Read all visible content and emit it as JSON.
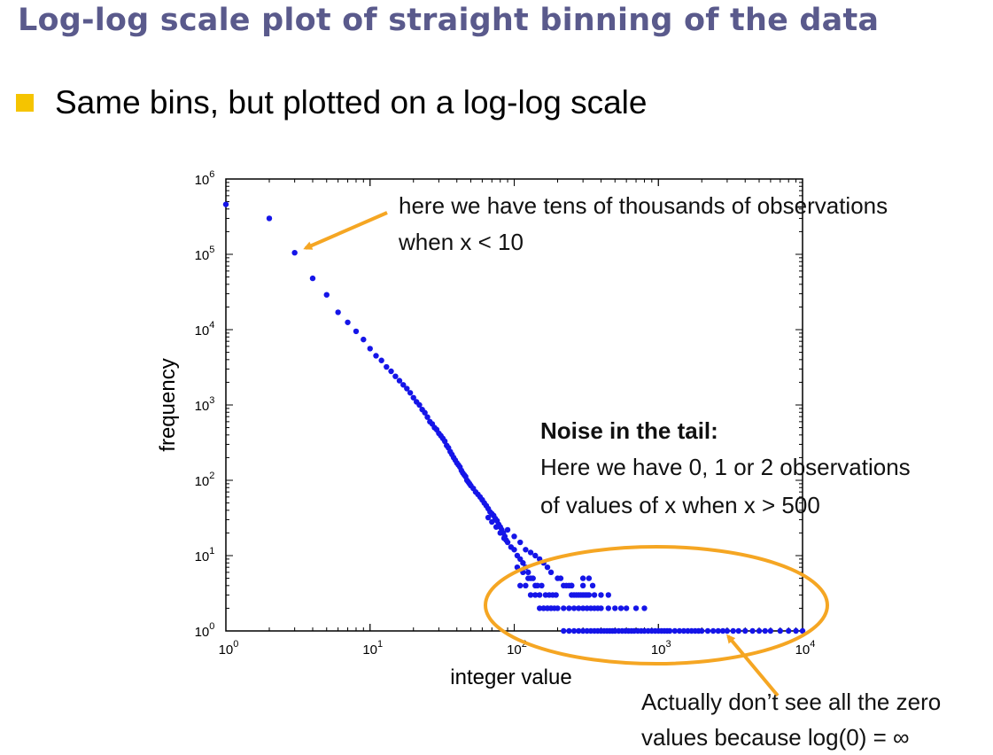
{
  "slide": {
    "title": "Log-log scale plot of straight binning of the data",
    "bullet": "Same bins, but plotted on a log-log scale"
  },
  "annotations": {
    "top_line1": "here we have tens of thousands of observations",
    "top_line2": "when x < 10",
    "noise_heading": "Noise in the tail:",
    "noise_line1": "Here we have 0, 1 or 2 observations",
    "noise_line2": "of values of x when x > 500",
    "bottom_line1": "Actually don’t see all the zero",
    "bottom_line2": "values because log(0) = ∞"
  },
  "colors": {
    "points": "#1515e8",
    "arrows": "#f5a623",
    "title": "#5a5a8c",
    "bullet": "#f5c400"
  },
  "chart_data": {
    "type": "scatter",
    "xscale": "log",
    "yscale": "log",
    "xlim": [
      1,
      10000
    ],
    "ylim": [
      1,
      1000000
    ],
    "xlabel": "integer value",
    "ylabel": "frequency",
    "xticks": [
      1,
      10,
      100,
      1000,
      10000
    ],
    "yticks": [
      1,
      10,
      100,
      1000,
      10000,
      100000,
      1000000
    ],
    "tick_labels": {
      "x": [
        {
          "base": "10",
          "exp": "0"
        },
        {
          "base": "10",
          "exp": "1"
        },
        {
          "base": "10",
          "exp": "2"
        },
        {
          "base": "10",
          "exp": "3"
        },
        {
          "base": "10",
          "exp": "4"
        }
      ],
      "y": [
        {
          "base": "10",
          "exp": "0"
        },
        {
          "base": "10",
          "exp": "1"
        },
        {
          "base": "10",
          "exp": "2"
        },
        {
          "base": "10",
          "exp": "3"
        },
        {
          "base": "10",
          "exp": "4"
        },
        {
          "base": "10",
          "exp": "5"
        },
        {
          "base": "10",
          "exp": "6"
        }
      ]
    },
    "points": [
      [
        1,
        460000
      ],
      [
        2,
        300000
      ],
      [
        3,
        105000
      ],
      [
        4,
        48000
      ],
      [
        5,
        29000
      ],
      [
        6,
        17000
      ],
      [
        7,
        12500
      ],
      [
        8,
        9500
      ],
      [
        9,
        7400
      ],
      [
        10,
        5600
      ],
      [
        11,
        4500
      ],
      [
        12,
        3900
      ],
      [
        13,
        3200
      ],
      [
        14,
        2800
      ],
      [
        15,
        2400
      ],
      [
        16,
        2100
      ],
      [
        17,
        1850
      ],
      [
        18,
        1650
      ],
      [
        19,
        1450
      ],
      [
        20,
        1250
      ],
      [
        21,
        1100
      ],
      [
        22,
        1000
      ],
      [
        23,
        870
      ],
      [
        24,
        790
      ],
      [
        25,
        690
      ],
      [
        26,
        600
      ],
      [
        27,
        560
      ],
      [
        28,
        500
      ],
      [
        29,
        470
      ],
      [
        30,
        420
      ],
      [
        31,
        390
      ],
      [
        32,
        360
      ],
      [
        33,
        330
      ],
      [
        34,
        290
      ],
      [
        35,
        270
      ],
      [
        36,
        240
      ],
      [
        37,
        220
      ],
      [
        38,
        200
      ],
      [
        39,
        185
      ],
      [
        40,
        170
      ],
      [
        41,
        160
      ],
      [
        42,
        150
      ],
      [
        43,
        135
      ],
      [
        44,
        125
      ],
      [
        45,
        118
      ],
      [
        46,
        112
      ],
      [
        47,
        100
      ],
      [
        48,
        95
      ],
      [
        49,
        90
      ],
      [
        50,
        85
      ],
      [
        52,
        78
      ],
      [
        54,
        70
      ],
      [
        56,
        65
      ],
      [
        58,
        60
      ],
      [
        60,
        55
      ],
      [
        62,
        50
      ],
      [
        64,
        46
      ],
      [
        66,
        42
      ],
      [
        68,
        38
      ],
      [
        70,
        36
      ],
      [
        72,
        34
      ],
      [
        74,
        31
      ],
      [
        76,
        29
      ],
      [
        78,
        26
      ],
      [
        80,
        24
      ],
      [
        82,
        22
      ],
      [
        84,
        20
      ],
      [
        86,
        18
      ],
      [
        88,
        16
      ],
      [
        66,
        32
      ],
      [
        70,
        28
      ],
      [
        75,
        24
      ],
      [
        80,
        20
      ],
      [
        85,
        17
      ],
      [
        90,
        15
      ],
      [
        95,
        13
      ],
      [
        100,
        12
      ],
      [
        105,
        10
      ],
      [
        110,
        9
      ],
      [
        115,
        8
      ],
      [
        120,
        7
      ],
      [
        125,
        6
      ],
      [
        130,
        5
      ],
      [
        140,
        4
      ],
      [
        150,
        3
      ],
      [
        160,
        2
      ],
      [
        170,
        2
      ],
      [
        180,
        2
      ],
      [
        190,
        2
      ],
      [
        90,
        22
      ],
      [
        100,
        18
      ],
      [
        110,
        15
      ],
      [
        120,
        12
      ],
      [
        130,
        11
      ],
      [
        140,
        10
      ],
      [
        150,
        9
      ],
      [
        160,
        8
      ],
      [
        170,
        7
      ],
      [
        180,
        6
      ],
      [
        200,
        5
      ],
      [
        210,
        5
      ],
      [
        220,
        4
      ],
      [
        230,
        4
      ],
      [
        240,
        4
      ],
      [
        250,
        4
      ],
      [
        260,
        3
      ],
      [
        280,
        3
      ],
      [
        300,
        3
      ],
      [
        320,
        3
      ],
      [
        105,
        7
      ],
      [
        115,
        6
      ],
      [
        125,
        5
      ],
      [
        135,
        5
      ],
      [
        145,
        4
      ],
      [
        155,
        4
      ],
      [
        165,
        3
      ],
      [
        175,
        3
      ],
      [
        185,
        3
      ],
      [
        195,
        3
      ],
      [
        110,
        4
      ],
      [
        120,
        4
      ],
      [
        130,
        3
      ],
      [
        140,
        3
      ],
      [
        150,
        2
      ],
      [
        160,
        2
      ],
      [
        170,
        2
      ],
      [
        180,
        2
      ],
      [
        200,
        2
      ],
      [
        220,
        2
      ],
      [
        240,
        2
      ],
      [
        260,
        2
      ],
      [
        280,
        2
      ],
      [
        300,
        2
      ],
      [
        320,
        2
      ],
      [
        340,
        2
      ],
      [
        360,
        2
      ],
      [
        380,
        2
      ],
      [
        400,
        2
      ],
      [
        450,
        2
      ],
      [
        500,
        2
      ],
      [
        550,
        2
      ],
      [
        600,
        2
      ],
      [
        700,
        2
      ],
      [
        800,
        2
      ],
      [
        250,
        3
      ],
      [
        270,
        3
      ],
      [
        290,
        3
      ],
      [
        310,
        3
      ],
      [
        330,
        3
      ],
      [
        360,
        3
      ],
      [
        400,
        3
      ],
      [
        450,
        3
      ],
      [
        250,
        4
      ],
      [
        300,
        4
      ],
      [
        350,
        4
      ],
      [
        300,
        5
      ],
      [
        330,
        5
      ],
      [
        220,
        1
      ],
      [
        240,
        1
      ],
      [
        260,
        1
      ],
      [
        280,
        1
      ],
      [
        300,
        1
      ],
      [
        320,
        1
      ],
      [
        340,
        1
      ],
      [
        360,
        1
      ],
      [
        380,
        1
      ],
      [
        400,
        1
      ],
      [
        420,
        1
      ],
      [
        440,
        1
      ],
      [
        460,
        1
      ],
      [
        480,
        1
      ],
      [
        500,
        1
      ],
      [
        530,
        1
      ],
      [
        560,
        1
      ],
      [
        590,
        1
      ],
      [
        620,
        1
      ],
      [
        650,
        1
      ],
      [
        680,
        1
      ],
      [
        720,
        1
      ],
      [
        760,
        1
      ],
      [
        800,
        1
      ],
      [
        850,
        1
      ],
      [
        900,
        1
      ],
      [
        950,
        1
      ],
      [
        1000,
        1
      ],
      [
        1050,
        1
      ],
      [
        1100,
        1
      ],
      [
        1150,
        1
      ],
      [
        1200,
        1
      ],
      [
        1300,
        1
      ],
      [
        1400,
        1
      ],
      [
        1500,
        1
      ],
      [
        1600,
        1
      ],
      [
        1700,
        1
      ],
      [
        1800,
        1
      ],
      [
        1900,
        1
      ],
      [
        2000,
        1
      ],
      [
        2200,
        1
      ],
      [
        2400,
        1
      ],
      [
        2600,
        1
      ],
      [
        2800,
        1
      ],
      [
        3000,
        1
      ],
      [
        3300,
        1
      ],
      [
        3600,
        1
      ],
      [
        4000,
        1
      ],
      [
        4500,
        1
      ],
      [
        5000,
        1
      ],
      [
        5500,
        1
      ],
      [
        6000,
        1
      ],
      [
        7000,
        1
      ],
      [
        8000,
        1
      ],
      [
        9000,
        1
      ],
      [
        10000,
        1
      ]
    ]
  }
}
